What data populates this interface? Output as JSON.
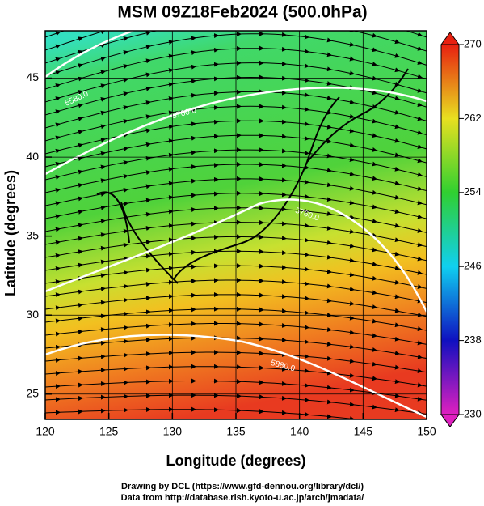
{
  "title": "MSM 09Z18Feb2024 (500.0hPa)",
  "x_axis": {
    "label": "Longitude (degrees)",
    "lim": [
      120,
      150
    ],
    "ticks": [
      120,
      125,
      130,
      135,
      140,
      145,
      150
    ]
  },
  "y_axis": {
    "label": "Latitude  (degrees)",
    "lim": [
      23.4,
      48
    ],
    "ticks": [
      25,
      30,
      35,
      40,
      45
    ]
  },
  "colorbar": {
    "lim": [
      230,
      270
    ],
    "ticks": [
      230,
      238,
      246,
      254,
      262,
      270
    ]
  },
  "contour_labels": [
    "5580.0",
    "5700.0",
    "5760.0",
    "5880.0"
  ],
  "credits": [
    "Drawing by DCL (https://www.gfd-dennou.org/library/dcl/)",
    "Data from http://database.rish.kyoto-u.ac.jp/arch/jmadata/"
  ]
}
